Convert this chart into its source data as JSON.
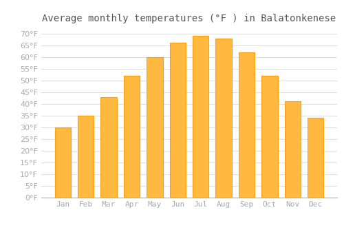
{
  "title": "Average monthly temperatures (°F ) in Balatonkenese",
  "months": [
    "Jan",
    "Feb",
    "Mar",
    "Apr",
    "May",
    "Jun",
    "Jul",
    "Aug",
    "Sep",
    "Oct",
    "Nov",
    "Dec"
  ],
  "values": [
    30,
    35,
    43,
    52,
    60,
    66,
    69,
    68,
    62,
    52,
    41,
    34
  ],
  "bar_color_light": "#FFB940",
  "bar_color_dark": "#FFA010",
  "background_color": "#FFFFFF",
  "grid_color": "#DDDDDD",
  "ylim": [
    0,
    72
  ],
  "yticks": [
    0,
    5,
    10,
    15,
    20,
    25,
    30,
    35,
    40,
    45,
    50,
    55,
    60,
    65,
    70
  ],
  "title_fontsize": 10,
  "tick_fontsize": 8,
  "font_color": "#AAAAAA",
  "title_color": "#555555"
}
